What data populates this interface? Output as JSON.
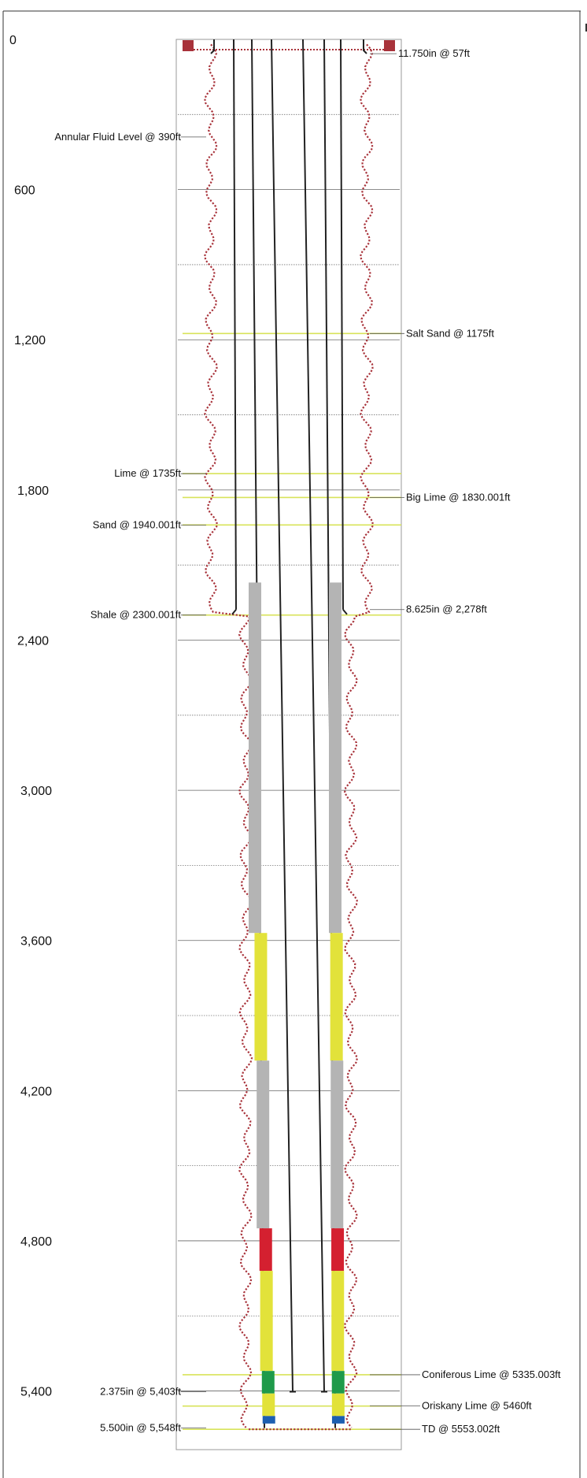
{
  "depth_axis": {
    "ticks": [
      "0",
      "600",
      "1,200",
      "1,800",
      "2,400",
      "3,000",
      "3,600",
      "4,200",
      "4,800",
      "5,400"
    ]
  },
  "annotations": {
    "left": [
      {
        "text": "Annular Fluid Level @ 390ft",
        "depth": 390
      },
      {
        "text": "Lime @ 1735ft",
        "depth": 1735
      },
      {
        "text": "Sand @ 1940.001ft",
        "depth": 1940.001
      },
      {
        "text": "Shale @ 2300.001ft",
        "depth": 2300.001
      },
      {
        "text": "2.375in @ 5,403ft",
        "depth": 5403
      },
      {
        "text": "5.500in @ 5,548ft",
        "depth": 5548
      }
    ],
    "right": [
      {
        "text": "11.750in @ 57ft",
        "depth": 57
      },
      {
        "text": "Salt Sand @ 1175ft",
        "depth": 1175
      },
      {
        "text": "Big Lime @ 1830.001ft",
        "depth": 1830.001
      },
      {
        "text": "8.625in @ 2,278ft",
        "depth": 2278
      },
      {
        "text": "Coniferous Lime @ 5335.003ft",
        "depth": 5335.003
      },
      {
        "text": "Oriskany Lime @ 5460ft",
        "depth": 5460
      },
      {
        "text": "TD @ 5553.002ft",
        "depth": 5553.002
      }
    ]
  },
  "formation_tops": [
    {
      "name": "Salt Sand",
      "depth": 1175
    },
    {
      "name": "Lime",
      "depth": 1735
    },
    {
      "name": "Big Lime",
      "depth": 1830.001
    },
    {
      "name": "Sand",
      "depth": 1940.001
    },
    {
      "name": "Shale",
      "depth": 2300.001
    },
    {
      "name": "Coniferous Lime",
      "depth": 5335.003
    },
    {
      "name": "Oriskany Lime",
      "depth": 5460
    },
    {
      "name": "TD",
      "depth": 5553.002
    }
  ],
  "casing_strings": [
    {
      "size": "11.750in",
      "shoe_depth": 57
    },
    {
      "size": "8.625in",
      "shoe_depth": 2278
    },
    {
      "size": "5.500in",
      "shoe_depth": 5548
    }
  ],
  "tubing": {
    "size": "2.375in",
    "depth": 5403
  },
  "cement_intervals": [
    {
      "top": 2170,
      "bottom": 3570,
      "color": "#b4b4b4"
    },
    {
      "top": 3570,
      "bottom": 4080,
      "color": "#e2e23a"
    },
    {
      "top": 4080,
      "bottom": 4750,
      "color": "#b4b4b4"
    },
    {
      "top": 4750,
      "bottom": 4920,
      "color": "#d42030"
    },
    {
      "top": 4920,
      "bottom": 5320,
      "color": "#e2e23a"
    },
    {
      "top": 5320,
      "bottom": 5410,
      "color": "#1f9a4a"
    },
    {
      "top": 5410,
      "bottom": 5500,
      "color": "#e2e23a"
    },
    {
      "top": 5500,
      "bottom": 5530,
      "color": "#1d5fb0"
    }
  ],
  "colors": {
    "borehole_outline": "#a8323a",
    "formation_line": "#d8e35a",
    "grid_line": "#666666",
    "pipe": "#222222"
  }
}
